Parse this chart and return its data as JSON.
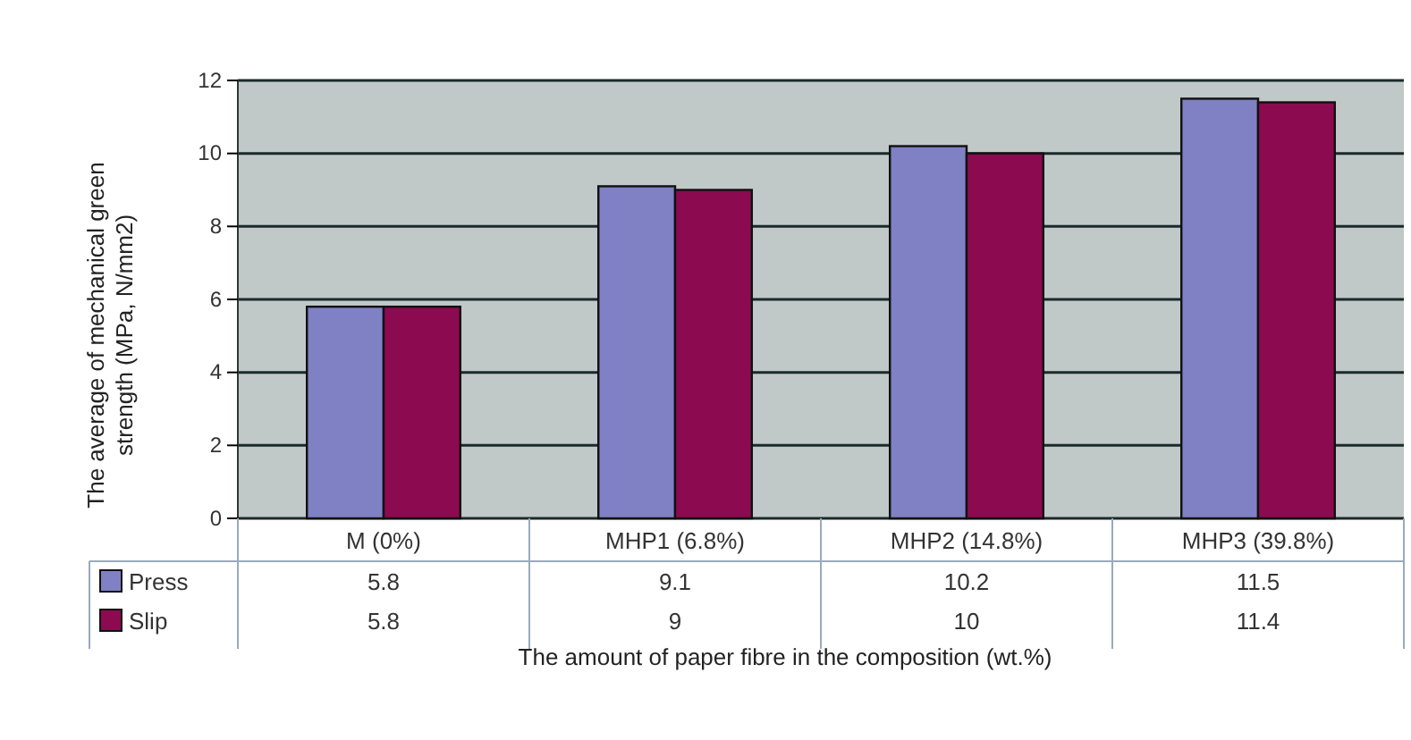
{
  "chart_data": {
    "type": "bar",
    "xlabel": "The amount of paper fibre in the composition (wt.%)",
    "ylabel": "The average of mechanical green strength (MPa, N/mm2)",
    "categories": [
      "M (0%)",
      "MHP1 (6.8%)",
      "MHP2 (14.8%)",
      "MHP3 (39.8%)"
    ],
    "series": [
      {
        "name": "Press",
        "color": "#8080c4",
        "values": [
          5.8,
          9.1,
          10.2,
          11.5
        ]
      },
      {
        "name": "Slip",
        "color": "#8c0a50",
        "values": [
          5.8,
          9,
          10,
          11.4
        ]
      }
    ],
    "ylim": [
      0,
      12
    ],
    "yticks": [
      0,
      2,
      4,
      6,
      8,
      10,
      12
    ],
    "grid": "y",
    "legend": "bottom left",
    "data_labels": true
  }
}
